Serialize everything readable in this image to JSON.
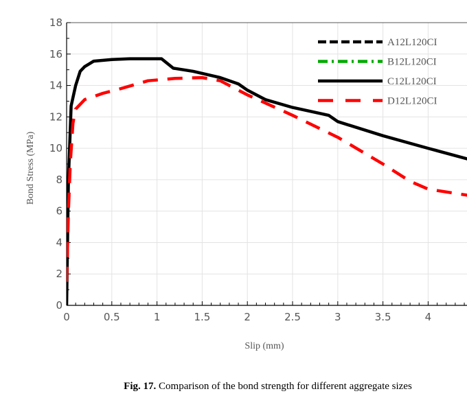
{
  "chart_data": {
    "type": "line",
    "xlabel": "Slip (mm)",
    "ylabel": "Bond Stress (MPa)",
    "xlim": [
      0,
      4.43
    ],
    "ylim": [
      0,
      18
    ],
    "xticks": [
      "0",
      "0.5",
      "1",
      "1.5",
      "2",
      "2.5",
      "3",
      "3.5",
      "4"
    ],
    "yticks": [
      "0",
      "2",
      "4",
      "6",
      "8",
      "10",
      "12",
      "14",
      "16",
      "18"
    ],
    "grid": true,
    "legend_position": "top-right",
    "legend": [
      {
        "name": "A12L120CI",
        "color": "#000000",
        "style": "dashed"
      },
      {
        "name": "B12L120CI",
        "color": "#00aa00",
        "style": "dash-dot"
      },
      {
        "name": "C12L120CI",
        "color": "#000000",
        "style": "solid"
      },
      {
        "name": "D12L120CI",
        "color": "#ff0000",
        "style": "long-dash"
      }
    ],
    "series": [
      {
        "name": "C12L120CI",
        "color": "#000000",
        "style": "solid",
        "x": [
          0,
          0.02,
          0.05,
          0.1,
          0.15,
          0.2,
          0.3,
          0.5,
          0.7,
          1.05,
          1.18,
          1.4,
          1.7,
          1.9,
          2.0,
          2.2,
          2.5,
          2.9,
          2.95,
          3.0,
          3.5,
          4.0,
          4.45
        ],
        "y": [
          0,
          8,
          12.7,
          14,
          14.9,
          15.2,
          15.55,
          15.65,
          15.7,
          15.7,
          15.1,
          14.9,
          14.5,
          14.1,
          13.7,
          13.1,
          12.6,
          12.1,
          11.9,
          11.7,
          10.8,
          10.0,
          9.3
        ]
      },
      {
        "name": "D12L120CI",
        "color": "#ff0000",
        "style": "long-dash",
        "x": [
          0,
          0.02,
          0.04,
          0.07,
          0.1,
          0.2,
          0.4,
          0.6,
          0.9,
          1.2,
          1.5,
          1.7,
          2.0,
          2.5,
          3.0,
          3.5,
          3.8,
          4.0,
          4.45
        ],
        "y": [
          1.5,
          6,
          9,
          11.6,
          12.5,
          13.1,
          13.5,
          13.8,
          14.3,
          14.45,
          14.5,
          14.3,
          13.4,
          12.1,
          10.7,
          9.0,
          7.9,
          7.4,
          7.0
        ]
      }
    ]
  },
  "caption": {
    "fig": "Fig. 17.",
    "text": " Comparison of the bond strength for different aggregate sizes"
  }
}
